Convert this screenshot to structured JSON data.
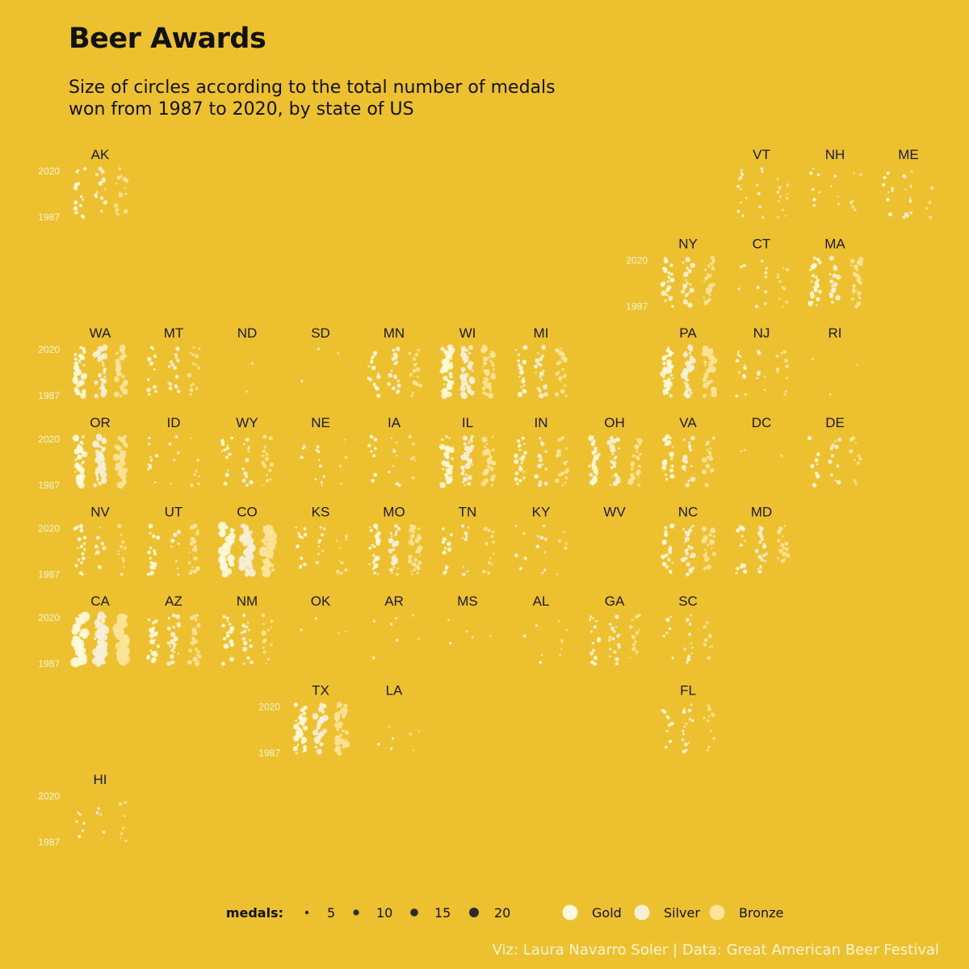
{
  "title": "Beer Awards",
  "subtitle": "Size of circles according to the total number of medals\n won from 1987 to 2020, by state of US",
  "caption": "Viz: Laura Navarro Soler | Data: Great American Beer Festival",
  "colors": {
    "background": "#ECC02E",
    "gold": "#FFF8DC",
    "silver": "#F6EFD8",
    "bronze": "#FBE49A"
  },
  "chart_data": {
    "type": "scatter",
    "layout": "us-tile-grid",
    "y_axis": {
      "min_label": "1987",
      "max_label": "2020",
      "range": [
        1987,
        2020
      ]
    },
    "legend": {
      "size_title": "medals:",
      "size_values": [
        5,
        10,
        15,
        20
      ],
      "medal_types": [
        "Gold",
        "Silver",
        "Bronze"
      ]
    },
    "states": [
      {
        "code": "AK",
        "col": 0,
        "row": 0,
        "density": 0.35,
        "max_size": 0.35,
        "show_axis": true
      },
      {
        "code": "VT",
        "col": 9,
        "row": 0,
        "density": 0.2,
        "max_size": 0.2
      },
      {
        "code": "NH",
        "col": 10,
        "row": 0,
        "density": 0.2,
        "max_size": 0.2
      },
      {
        "code": "ME",
        "col": 11,
        "row": 0,
        "density": 0.25,
        "max_size": 0.25
      },
      {
        "code": "NY",
        "col": 8,
        "row": 1,
        "density": 0.6,
        "max_size": 0.4,
        "show_axis": true
      },
      {
        "code": "CT",
        "col": 9,
        "row": 1,
        "density": 0.2,
        "max_size": 0.2
      },
      {
        "code": "MA",
        "col": 10,
        "row": 1,
        "density": 0.6,
        "max_size": 0.4
      },
      {
        "code": "WA",
        "col": 0,
        "row": 2,
        "density": 0.85,
        "max_size": 0.5,
        "show_axis": true
      },
      {
        "code": "MT",
        "col": 1,
        "row": 2,
        "density": 0.35,
        "max_size": 0.3
      },
      {
        "code": "ND",
        "col": 2,
        "row": 2,
        "density": 0.02,
        "max_size": 0.1
      },
      {
        "code": "SD",
        "col": 3,
        "row": 2,
        "density": 0.06,
        "max_size": 0.1
      },
      {
        "code": "MN",
        "col": 4,
        "row": 2,
        "density": 0.5,
        "max_size": 0.35
      },
      {
        "code": "WI",
        "col": 5,
        "row": 2,
        "density": 0.9,
        "max_size": 0.55
      },
      {
        "code": "MI",
        "col": 6,
        "row": 2,
        "density": 0.6,
        "max_size": 0.4
      },
      {
        "code": "PA",
        "col": 8,
        "row": 2,
        "density": 0.9,
        "max_size": 0.55
      },
      {
        "code": "NJ",
        "col": 9,
        "row": 2,
        "density": 0.3,
        "max_size": 0.25
      },
      {
        "code": "RI",
        "col": 10,
        "row": 2,
        "density": 0.03,
        "max_size": 0.1
      },
      {
        "code": "OR",
        "col": 0,
        "row": 3,
        "density": 0.95,
        "max_size": 0.6,
        "show_axis": true
      },
      {
        "code": "ID",
        "col": 1,
        "row": 3,
        "density": 0.25,
        "max_size": 0.2
      },
      {
        "code": "WY",
        "col": 2,
        "row": 3,
        "density": 0.35,
        "max_size": 0.3
      },
      {
        "code": "NE",
        "col": 3,
        "row": 3,
        "density": 0.15,
        "max_size": 0.2
      },
      {
        "code": "IA",
        "col": 4,
        "row": 3,
        "density": 0.25,
        "max_size": 0.25
      },
      {
        "code": "IL",
        "col": 5,
        "row": 3,
        "density": 0.8,
        "max_size": 0.5
      },
      {
        "code": "IN",
        "col": 6,
        "row": 3,
        "density": 0.5,
        "max_size": 0.35
      },
      {
        "code": "OH",
        "col": 7,
        "row": 3,
        "density": 0.7,
        "max_size": 0.45
      },
      {
        "code": "VA",
        "col": 8,
        "row": 3,
        "density": 0.55,
        "max_size": 0.4
      },
      {
        "code": "DC",
        "col": 9,
        "row": 3,
        "density": 0.03,
        "max_size": 0.1
      },
      {
        "code": "DE",
        "col": 10,
        "row": 3,
        "density": 0.25,
        "max_size": 0.3
      },
      {
        "code": "NV",
        "col": 0,
        "row": 4,
        "density": 0.35,
        "max_size": 0.3,
        "show_axis": true
      },
      {
        "code": "UT",
        "col": 1,
        "row": 4,
        "density": 0.45,
        "max_size": 0.4
      },
      {
        "code": "CO",
        "col": 2,
        "row": 4,
        "density": 1.0,
        "max_size": 0.85
      },
      {
        "code": "KS",
        "col": 3,
        "row": 4,
        "density": 0.3,
        "max_size": 0.25
      },
      {
        "code": "MO",
        "col": 4,
        "row": 4,
        "density": 0.7,
        "max_size": 0.45
      },
      {
        "code": "TN",
        "col": 5,
        "row": 4,
        "density": 0.35,
        "max_size": 0.3
      },
      {
        "code": "KY",
        "col": 6,
        "row": 4,
        "density": 0.2,
        "max_size": 0.25
      },
      {
        "code": "WV",
        "col": 7,
        "row": 4,
        "density": 0.0,
        "max_size": 0.1
      },
      {
        "code": "NC",
        "col": 8,
        "row": 4,
        "density": 0.6,
        "max_size": 0.45
      },
      {
        "code": "MD",
        "col": 9,
        "row": 4,
        "density": 0.45,
        "max_size": 0.35
      },
      {
        "code": "CA",
        "col": 0,
        "row": 5,
        "density": 1.0,
        "max_size": 0.95,
        "show_axis": true
      },
      {
        "code": "AZ",
        "col": 1,
        "row": 5,
        "density": 0.6,
        "max_size": 0.4
      },
      {
        "code": "NM",
        "col": 2,
        "row": 5,
        "density": 0.45,
        "max_size": 0.4
      },
      {
        "code": "OK",
        "col": 3,
        "row": 5,
        "density": 0.05,
        "max_size": 0.15
      },
      {
        "code": "AR",
        "col": 4,
        "row": 5,
        "density": 0.06,
        "max_size": 0.15
      },
      {
        "code": "MS",
        "col": 5,
        "row": 5,
        "density": 0.04,
        "max_size": 0.1
      },
      {
        "code": "AL",
        "col": 6,
        "row": 5,
        "density": 0.08,
        "max_size": 0.15
      },
      {
        "code": "GA",
        "col": 7,
        "row": 5,
        "density": 0.4,
        "max_size": 0.3
      },
      {
        "code": "SC",
        "col": 8,
        "row": 5,
        "density": 0.25,
        "max_size": 0.3
      },
      {
        "code": "TX",
        "col": 3,
        "row": 6,
        "density": 0.85,
        "max_size": 0.55,
        "show_axis": true
      },
      {
        "code": "LA",
        "col": 4,
        "row": 6,
        "density": 0.05,
        "max_size": 0.15
      },
      {
        "code": "FL",
        "col": 8,
        "row": 6,
        "density": 0.35,
        "max_size": 0.3
      },
      {
        "code": "HI",
        "col": 0,
        "row": 7,
        "density": 0.2,
        "max_size": 0.2,
        "show_axis": true
      }
    ]
  }
}
